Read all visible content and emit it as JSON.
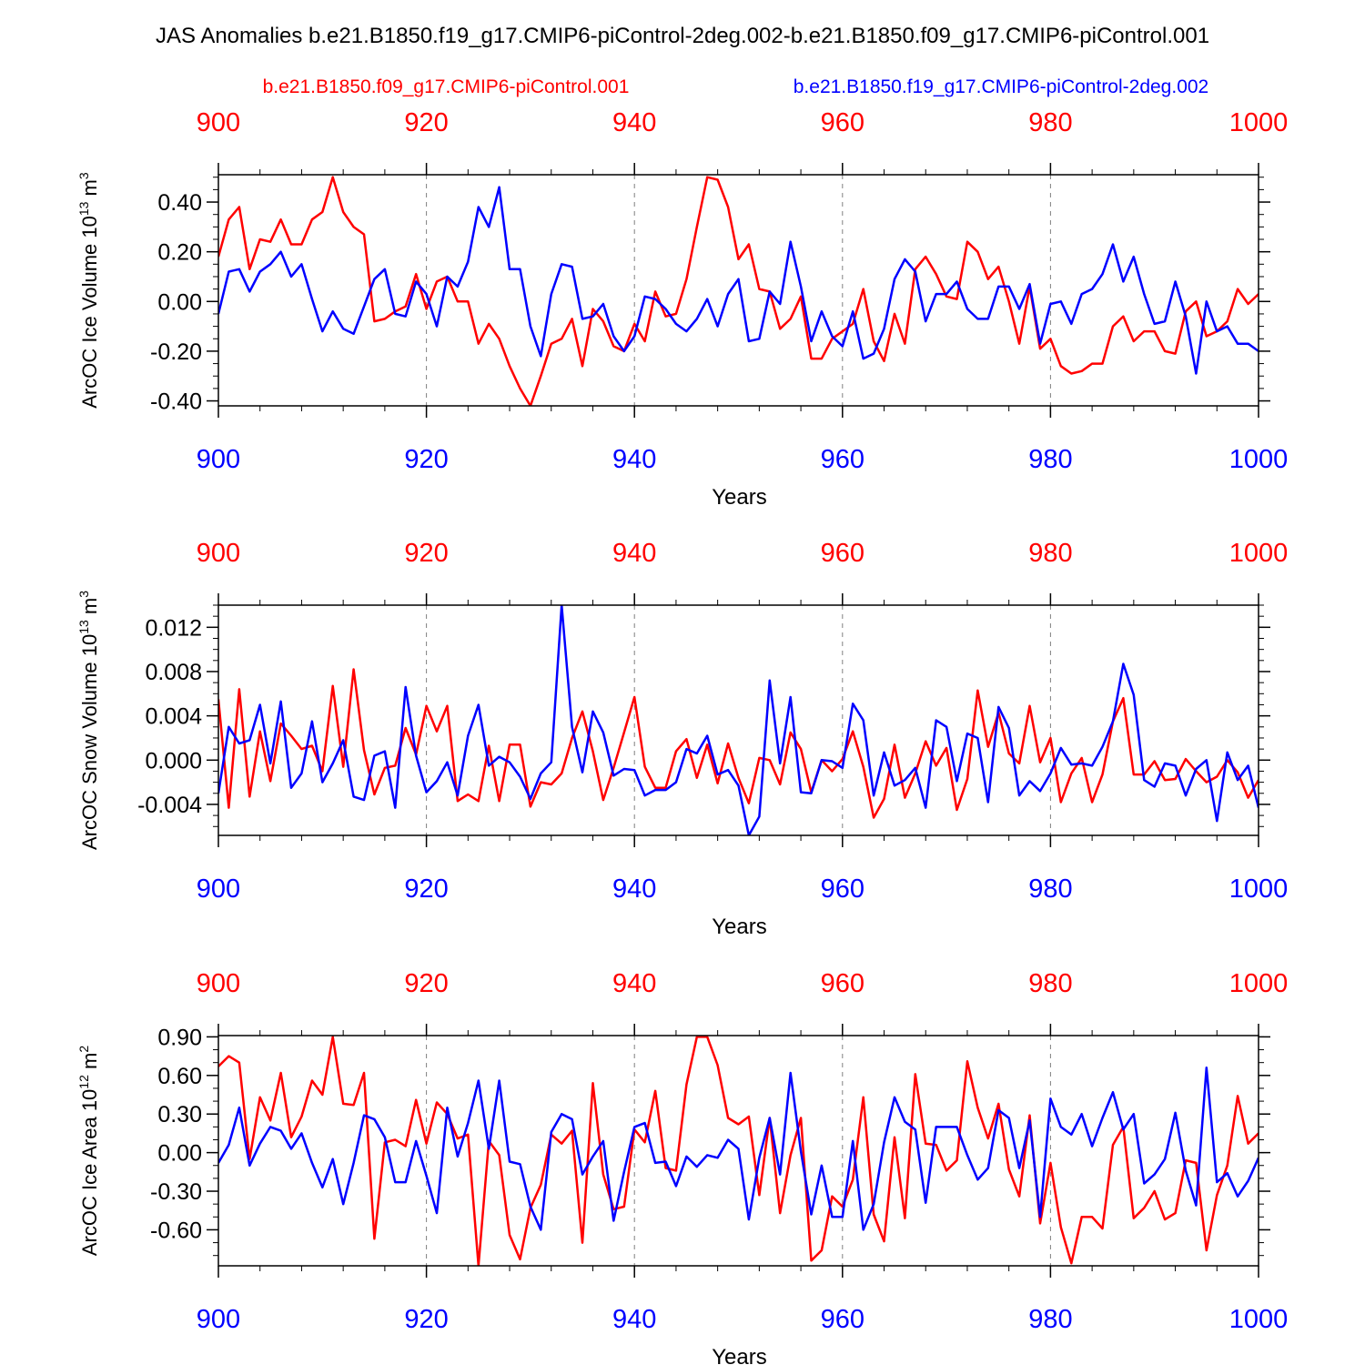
{
  "title": "JAS Anomalies b.e21.B1850.f19_g17.CMIP6-piControl-2deg.002-b.e21.B1850.f09_g17.CMIP6-piControl.001",
  "legend": {
    "red": "b.e21.B1850.f09_g17.CMIP6-piControl.001",
    "blue": "b.e21.B1850.f19_g17.CMIP6-piControl-2deg.002"
  },
  "colors": {
    "red": "#ff0000",
    "blue": "#0000ff",
    "axis": "#000000",
    "grid": "#808080"
  },
  "chart_data": [
    {
      "type": "line",
      "ylabel": "ArcOC Ice Volume",
      "unit_base": "10",
      "unit_exp": "13",
      "unit_suffix": "m",
      "unit_sup": "3",
      "xlabel": "Years",
      "xlim": [
        900,
        1000
      ],
      "ylim": [
        -0.42,
        0.51
      ],
      "xticks": [
        900,
        920,
        940,
        960,
        980,
        1000
      ],
      "xtick_labels": [
        "900",
        "920",
        "940",
        "960",
        "980",
        "1000"
      ],
      "yticks": [
        -0.4,
        -0.2,
        0.0,
        0.2,
        0.4
      ],
      "ytick_labels": [
        "-0.40",
        "-0.20",
        "0.00",
        "0.20",
        "0.40"
      ],
      "ydecimals": 2,
      "yminor": 0.05,
      "x": [
        900,
        901,
        902,
        903,
        904,
        905,
        906,
        907,
        908,
        909,
        910,
        911,
        912,
        913,
        914,
        915,
        916,
        917,
        918,
        919,
        920,
        921,
        922,
        923,
        924,
        925,
        926,
        927,
        928,
        929,
        930,
        931,
        932,
        933,
        934,
        935,
        936,
        937,
        938,
        939,
        940,
        941,
        942,
        943,
        944,
        945,
        946,
        947,
        948,
        949,
        950,
        951,
        952,
        953,
        954,
        955,
        956,
        957,
        958,
        959,
        960,
        961,
        962,
        963,
        964,
        965,
        966,
        967,
        968,
        969,
        970,
        971,
        972,
        973,
        974,
        975,
        976,
        977,
        978,
        979,
        980,
        981,
        982,
        983,
        984,
        985,
        986,
        987,
        988,
        989,
        990,
        991,
        992,
        993,
        994,
        995,
        996,
        997,
        998,
        999,
        1000
      ],
      "series": [
        {
          "name": "b.e21.B1850.f09_g17.CMIP6-piControl.001",
          "color": "red",
          "values": [
            0.18,
            0.33,
            0.38,
            0.13,
            0.25,
            0.24,
            0.33,
            0.23,
            0.23,
            0.33,
            0.36,
            0.5,
            0.36,
            0.3,
            0.27,
            -0.08,
            -0.07,
            -0.04,
            -0.02,
            0.11,
            -0.03,
            0.08,
            0.1,
            0.0,
            0.0,
            -0.17,
            -0.09,
            -0.15,
            -0.26,
            -0.35,
            -0.42,
            -0.3,
            -0.17,
            -0.15,
            -0.07,
            -0.26,
            -0.03,
            -0.08,
            -0.18,
            -0.2,
            -0.09,
            -0.16,
            0.04,
            -0.06,
            -0.05,
            0.09,
            0.3,
            0.5,
            0.49,
            0.38,
            0.17,
            0.23,
            0.05,
            0.04,
            -0.11,
            -0.07,
            0.02,
            -0.23,
            -0.23,
            -0.15,
            -0.12,
            -0.09,
            0.05,
            -0.16,
            -0.24,
            -0.05,
            -0.17,
            0.13,
            0.18,
            0.11,
            0.02,
            0.01,
            0.24,
            0.2,
            0.09,
            0.14,
            0.0,
            -0.17,
            0.06,
            -0.19,
            -0.15,
            -0.26,
            -0.29,
            -0.28,
            -0.25,
            -0.25,
            -0.1,
            -0.06,
            -0.16,
            -0.12,
            -0.12,
            -0.2,
            -0.21,
            -0.04,
            0.0,
            -0.14,
            -0.12,
            -0.08,
            0.05,
            -0.01,
            0.03
          ]
        },
        {
          "name": "b.e21.B1850.f19_g17.CMIP6-piControl-2deg.002",
          "color": "blue",
          "values": [
            -0.05,
            0.12,
            0.13,
            0.04,
            0.12,
            0.15,
            0.2,
            0.1,
            0.15,
            0.01,
            -0.12,
            -0.04,
            -0.11,
            -0.13,
            -0.02,
            0.09,
            0.13,
            -0.05,
            -0.06,
            0.08,
            0.03,
            -0.1,
            0.1,
            0.06,
            0.16,
            0.38,
            0.3,
            0.46,
            0.13,
            0.13,
            -0.1,
            -0.22,
            0.03,
            0.15,
            0.14,
            -0.07,
            -0.06,
            -0.01,
            -0.14,
            -0.2,
            -0.14,
            0.02,
            0.01,
            -0.03,
            -0.09,
            -0.12,
            -0.07,
            0.01,
            -0.1,
            0.03,
            0.09,
            -0.16,
            -0.15,
            0.04,
            -0.01,
            0.24,
            0.06,
            -0.16,
            -0.04,
            -0.14,
            -0.18,
            -0.04,
            -0.23,
            -0.21,
            -0.11,
            0.09,
            0.17,
            0.12,
            -0.08,
            0.03,
            0.03,
            0.08,
            -0.03,
            -0.07,
            -0.07,
            0.06,
            0.06,
            -0.03,
            0.07,
            -0.17,
            -0.01,
            0.0,
            -0.09,
            0.03,
            0.05,
            0.11,
            0.23,
            0.08,
            0.18,
            0.03,
            -0.09,
            -0.08,
            0.08,
            -0.06,
            -0.29,
            0.0,
            -0.12,
            -0.1,
            -0.17,
            -0.17,
            -0.2
          ]
        }
      ]
    },
    {
      "type": "line",
      "ylabel": "ArcOC Snow Volume",
      "unit_base": "10",
      "unit_exp": "13",
      "unit_suffix": "m",
      "unit_sup": "3",
      "xlabel": "Years",
      "xlim": [
        900,
        1000
      ],
      "ylim": [
        -0.0068,
        0.014
      ],
      "xticks": [
        900,
        920,
        940,
        960,
        980,
        1000
      ],
      "xtick_labels": [
        "900",
        "920",
        "940",
        "960",
        "980",
        "1000"
      ],
      "yticks": [
        -0.004,
        0.0,
        0.004,
        0.008,
        0.012
      ],
      "ytick_labels": [
        "-0.004",
        "0.000",
        "0.004",
        "0.008",
        "0.012"
      ],
      "ydecimals": 3,
      "yminor": 0.001,
      "x": [
        900,
        901,
        902,
        903,
        904,
        905,
        906,
        907,
        908,
        909,
        910,
        911,
        912,
        913,
        914,
        915,
        916,
        917,
        918,
        919,
        920,
        921,
        922,
        923,
        924,
        925,
        926,
        927,
        928,
        929,
        930,
        931,
        932,
        933,
        934,
        935,
        936,
        937,
        938,
        939,
        940,
        941,
        942,
        943,
        944,
        945,
        946,
        947,
        948,
        949,
        950,
        951,
        952,
        953,
        954,
        955,
        956,
        957,
        958,
        959,
        960,
        961,
        962,
        963,
        964,
        965,
        966,
        967,
        968,
        969,
        970,
        971,
        972,
        973,
        974,
        975,
        976,
        977,
        978,
        979,
        980,
        981,
        982,
        983,
        984,
        985,
        986,
        987,
        988,
        989,
        990,
        991,
        992,
        993,
        994,
        995,
        996,
        997,
        998,
        999,
        1000
      ],
      "series": [
        {
          "name": "b.e21.B1850.f09_g17.CMIP6-piControl.001",
          "color": "red",
          "values": [
            0.0055,
            -0.0043,
            0.0064,
            -0.0033,
            0.0026,
            -0.0019,
            0.0033,
            0.0022,
            0.001,
            0.0013,
            -0.001,
            0.0067,
            -0.0006,
            0.0082,
            0.0009,
            -0.0031,
            -0.0007,
            -0.0005,
            0.0029,
            0.0005,
            0.0049,
            0.0026,
            0.0049,
            -0.0037,
            -0.0031,
            -0.0037,
            0.0013,
            -0.0037,
            0.0014,
            0.0014,
            -0.0042,
            -0.002,
            -0.0022,
            -0.0012,
            0.002,
            0.0044,
            0.0008,
            -0.0036,
            -0.0007,
            0.0025,
            0.0057,
            -0.0006,
            -0.0025,
            -0.0025,
            0.0008,
            0.0019,
            -0.0016,
            0.0014,
            -0.0021,
            0.0015,
            -0.0016,
            -0.0039,
            0.0002,
            0.0,
            -0.0022,
            0.0025,
            0.001,
            -0.0029,
            0.0,
            -0.001,
            0.0001,
            0.0026,
            -0.0006,
            -0.0052,
            -0.0035,
            0.0014,
            -0.0034,
            -0.0012,
            0.0017,
            -0.0005,
            0.0011,
            -0.0045,
            -0.0017,
            0.0063,
            0.0012,
            0.0043,
            0.0006,
            -0.0003,
            0.0049,
            -0.0002,
            0.002,
            -0.0038,
            -0.0012,
            0.0002,
            -0.0038,
            -0.0013,
            0.0035,
            0.0056,
            -0.0013,
            -0.0013,
            -0.0001,
            -0.0018,
            -0.0017,
            0.0001,
            -0.001,
            -0.002,
            -0.0015,
            0.0,
            -0.0011,
            -0.0034,
            -0.0018
          ]
        },
        {
          "name": "b.e21.B1850.f19_g17.CMIP6-piControl-2deg.002",
          "color": "blue",
          "values": [
            -0.003,
            0.003,
            0.0015,
            0.0018,
            0.005,
            -0.0003,
            0.0053,
            -0.0025,
            -0.0012,
            0.0035,
            -0.002,
            -0.0003,
            0.0018,
            -0.0033,
            -0.0036,
            0.0004,
            0.0008,
            -0.0043,
            0.0066,
            0.0004,
            -0.0029,
            -0.0019,
            -0.0002,
            -0.0032,
            0.0022,
            0.005,
            -0.0005,
            0.0003,
            -0.0002,
            -0.0015,
            -0.0035,
            -0.0012,
            -0.0002,
            0.014,
            0.003,
            -0.0011,
            0.0044,
            0.0025,
            -0.0014,
            -0.0008,
            -0.0009,
            -0.0032,
            -0.0027,
            -0.0027,
            -0.002,
            0.001,
            0.0006,
            0.0022,
            -0.0013,
            -0.0009,
            -0.0023,
            -0.0068,
            -0.0051,
            0.0072,
            -0.0003,
            0.0057,
            -0.0029,
            -0.003,
            0.0,
            -0.0001,
            -0.0007,
            0.0051,
            0.0036,
            -0.0032,
            0.0007,
            -0.0023,
            -0.0018,
            -0.0007,
            -0.0043,
            0.0036,
            0.003,
            -0.0019,
            0.0024,
            0.002,
            -0.0038,
            0.0048,
            0.0029,
            -0.0032,
            -0.0019,
            -0.0028,
            -0.0012,
            0.0011,
            -0.0004,
            -0.0003,
            -0.0005,
            0.0012,
            0.0035,
            0.0087,
            0.0059,
            -0.0018,
            -0.0024,
            -0.0003,
            -0.0005,
            -0.0032,
            -0.0008,
            0.0,
            -0.0055,
            0.0007,
            -0.0018,
            -0.0005,
            -0.0043
          ]
        }
      ]
    },
    {
      "type": "line",
      "ylabel": "ArcOC Ice Area",
      "unit_base": "10",
      "unit_exp": "12",
      "unit_suffix": "m",
      "unit_sup": "2",
      "xlabel": "Years",
      "xlim": [
        900,
        1000
      ],
      "ylim": [
        -0.88,
        0.91
      ],
      "xticks": [
        900,
        920,
        940,
        960,
        980,
        1000
      ],
      "xtick_labels": [
        "900",
        "920",
        "940",
        "960",
        "980",
        "1000"
      ],
      "yticks": [
        -0.6,
        -0.3,
        0.0,
        0.3,
        0.6,
        0.9
      ],
      "ytick_labels": [
        "-0.60",
        "-0.30",
        "0.00",
        "0.30",
        "0.60",
        "0.90"
      ],
      "ydecimals": 2,
      "yminor": 0.1,
      "x": [
        900,
        901,
        902,
        903,
        904,
        905,
        906,
        907,
        908,
        909,
        910,
        911,
        912,
        913,
        914,
        915,
        916,
        917,
        918,
        919,
        920,
        921,
        922,
        923,
        924,
        925,
        926,
        927,
        928,
        929,
        930,
        931,
        932,
        933,
        934,
        935,
        936,
        937,
        938,
        939,
        940,
        941,
        942,
        943,
        944,
        945,
        946,
        947,
        948,
        949,
        950,
        951,
        952,
        953,
        954,
        955,
        956,
        957,
        958,
        959,
        960,
        961,
        962,
        963,
        964,
        965,
        966,
        967,
        968,
        969,
        970,
        971,
        972,
        973,
        974,
        975,
        976,
        977,
        978,
        979,
        980,
        981,
        982,
        983,
        984,
        985,
        986,
        987,
        988,
        989,
        990,
        991,
        992,
        993,
        994,
        995,
        996,
        997,
        998,
        999,
        1000
      ],
      "series": [
        {
          "name": "b.e21.B1850.f09_g17.CMIP6-piControl.001",
          "color": "red",
          "values": [
            0.67,
            0.75,
            0.7,
            -0.05,
            0.43,
            0.25,
            0.62,
            0.12,
            0.28,
            0.56,
            0.45,
            0.9,
            0.38,
            0.37,
            0.62,
            -0.67,
            0.08,
            0.1,
            0.05,
            0.41,
            0.07,
            0.39,
            0.3,
            0.11,
            0.14,
            -0.88,
            0.09,
            -0.02,
            -0.64,
            -0.83,
            -0.43,
            -0.25,
            0.14,
            0.07,
            0.17,
            -0.7,
            0.54,
            -0.17,
            -0.44,
            -0.42,
            0.18,
            0.08,
            0.48,
            -0.12,
            -0.14,
            0.53,
            0.9,
            0.9,
            0.68,
            0.27,
            0.22,
            0.28,
            -0.33,
            0.27,
            -0.47,
            -0.02,
            0.27,
            -0.84,
            -0.76,
            -0.34,
            -0.42,
            -0.21,
            0.43,
            -0.48,
            -0.69,
            0.12,
            -0.51,
            0.61,
            0.07,
            0.06,
            -0.14,
            -0.06,
            0.71,
            0.35,
            0.11,
            0.38,
            -0.13,
            -0.34,
            0.29,
            -0.55,
            -0.08,
            -0.58,
            -0.86,
            -0.5,
            -0.5,
            -0.59,
            0.06,
            0.2,
            -0.51,
            -0.43,
            -0.3,
            -0.52,
            -0.47,
            -0.06,
            -0.08,
            -0.76,
            -0.33,
            -0.1,
            0.44,
            0.07,
            0.15
          ]
        },
        {
          "name": "b.e21.B1850.f19_g17.CMIP6-piControl-2deg.002",
          "color": "blue",
          "values": [
            -0.08,
            0.06,
            0.35,
            -0.1,
            0.07,
            0.2,
            0.17,
            0.03,
            0.15,
            -0.08,
            -0.27,
            -0.05,
            -0.4,
            -0.08,
            0.29,
            0.26,
            0.12,
            -0.23,
            -0.23,
            0.09,
            -0.18,
            -0.47,
            0.35,
            -0.03,
            0.23,
            0.56,
            0.03,
            0.56,
            -0.07,
            -0.09,
            -0.42,
            -0.6,
            0.16,
            0.3,
            0.26,
            -0.17,
            -0.03,
            0.09,
            -0.53,
            -0.15,
            0.2,
            0.23,
            -0.08,
            -0.07,
            -0.26,
            -0.03,
            -0.11,
            -0.02,
            -0.04,
            0.1,
            0.03,
            -0.52,
            -0.04,
            0.27,
            -0.17,
            0.62,
            0.01,
            -0.48,
            -0.1,
            -0.5,
            -0.5,
            0.09,
            -0.6,
            -0.4,
            0.08,
            0.43,
            0.24,
            0.18,
            -0.39,
            0.2,
            0.2,
            0.2,
            -0.02,
            -0.21,
            -0.12,
            0.33,
            0.27,
            -0.12,
            0.25,
            -0.5,
            0.42,
            0.2,
            0.14,
            0.3,
            0.05,
            0.27,
            0.47,
            0.18,
            0.3,
            -0.24,
            -0.17,
            -0.05,
            0.31,
            -0.14,
            -0.41,
            0.66,
            -0.23,
            -0.16,
            -0.34,
            -0.22,
            -0.04
          ]
        }
      ]
    }
  ]
}
